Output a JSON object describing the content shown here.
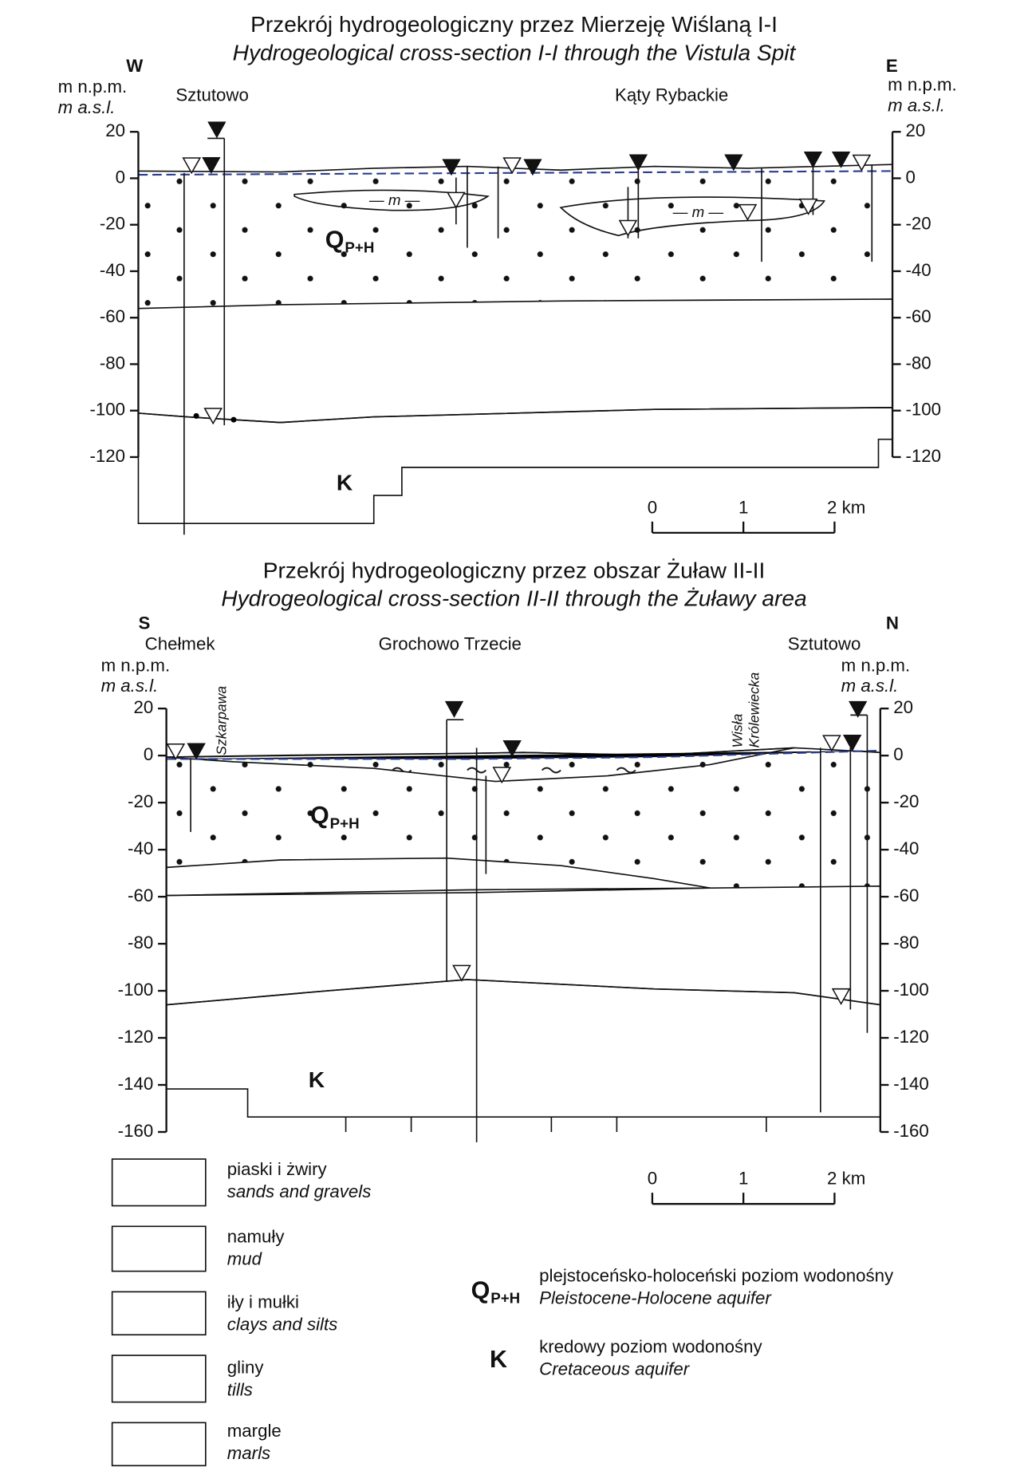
{
  "sections": [
    {
      "title_pl": "Przekrój hydrogeologiczny przez Mierzeję Wiślaną I-I",
      "title_en": "Hydrogeological cross-section I-I through the Vistula Spit",
      "left_end": "W",
      "right_end": "E",
      "axis_label_pl": "m n.p.m.",
      "axis_label_en": "m a.s.l.",
      "places": [
        "Sztutowo",
        "Kąty Rybackie"
      ],
      "yticks": [
        20,
        0,
        -20,
        -40,
        -60,
        -80,
        -100,
        -120
      ],
      "q_symbol": "Q",
      "q_sub": "P+H",
      "k_symbol": "K",
      "scale_ticks": [
        0,
        1,
        {
          "value": 2,
          "label": "2 km"
        }
      ]
    },
    {
      "title_pl": "Przekrój hydrogeologiczny przez obszar Żuław II-II",
      "title_en": "Hydrogeological cross-section II-II through the Żuławy area",
      "left_end": "S",
      "right_end": "N",
      "axis_label_pl": "m n.p.m.",
      "axis_label_en": "m a.s.l.",
      "places": [
        "Chełmek",
        "Grochowo Trzecie",
        "Sztutowo"
      ],
      "rivers": [
        "Szkarpawa",
        "Wisła",
        "Królewiecka"
      ],
      "yticks": [
        20,
        0,
        -20,
        -40,
        -60,
        -80,
        -100,
        -120,
        -140,
        -160
      ],
      "q_symbol": "Q",
      "q_sub": "P+H",
      "k_symbol": "K",
      "scale_ticks": [
        0,
        1,
        {
          "value": 2,
          "label": "2 km"
        }
      ]
    }
  ],
  "legend": [
    {
      "pl": "piaski i żwiry",
      "en": "sands and gravels"
    },
    {
      "pl": "namuły",
      "en": "mud"
    },
    {
      "pl": "iły i mułki",
      "en": "clays and silts"
    },
    {
      "pl": "gliny",
      "en": "tills"
    },
    {
      "pl": "margle",
      "en": "marls"
    }
  ],
  "aquifer_legend": [
    {
      "symbol": "Q",
      "sub": "P+H",
      "pl": "plejstoceńsko-holoceński poziom wodonośny",
      "en": "Pleistocene-Holocene aquifer"
    },
    {
      "symbol": "K",
      "pl": "kredowy poziom wodonośny",
      "en": "Cretaceous aquifer"
    }
  ]
}
